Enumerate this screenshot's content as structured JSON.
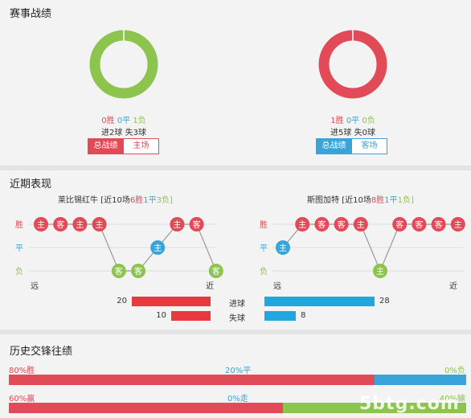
{
  "sections": {
    "record_title": "赛事战绩",
    "recent_title": "近期表现",
    "h2h_title": "历史交锋往绩"
  },
  "left_team": {
    "donut_win_fraction": 0,
    "donut_draw_fraction": 0,
    "donut_loss_fraction": 1,
    "wins": "0胜",
    "draws": "0平",
    "losses": "1负",
    "goals": "进2球",
    "conceded": "失3球",
    "tab_total": "总战绩",
    "tab_venue": "主场",
    "recent_team": "莱比锡红牛",
    "recent_prefix": "[近10场",
    "recent_wins": "6胜",
    "recent_draws": "1平",
    "recent_losses": "3负]",
    "results": [
      "W",
      "W",
      "W",
      "W",
      "L",
      "L",
      "D",
      "W",
      "W",
      "L"
    ],
    "venues": [
      "主",
      "客",
      "主",
      "主",
      "客",
      "客",
      "主",
      "主",
      "客",
      "客"
    ],
    "label_far": "远",
    "label_near": "近",
    "goals_for": 20,
    "goals_against": 10
  },
  "right_team": {
    "donut_win_fraction": 1,
    "donut_draw_fraction": 0,
    "donut_loss_fraction": 0,
    "wins": "1胜",
    "draws": "0平",
    "losses": "0负",
    "goals": "进5球",
    "conceded": "失0球",
    "tab_total": "总战绩",
    "tab_venue": "客场",
    "recent_team": "斯图加特",
    "recent_prefix": "[近10场",
    "recent_wins": "8胜",
    "recent_draws": "1平",
    "recent_losses": "1负]",
    "results": [
      "D",
      "W",
      "W",
      "W",
      "W",
      "L",
      "W",
      "W",
      "W",
      "W"
    ],
    "venues": [
      "主",
      "主",
      "客",
      "客",
      "主",
      "主",
      "客",
      "客",
      "客",
      "主"
    ],
    "label_far": "远",
    "label_near": "近",
    "goals_for": 28,
    "goals_against": 8
  },
  "axis_labels": {
    "win": "胜",
    "draw": "平",
    "loss": "负"
  },
  "center_labels": {
    "goals_for": "进球",
    "goals_against": "失球"
  },
  "h2h": {
    "row1": {
      "win_pct": 80,
      "draw_pct": 20,
      "loss_pct": 0,
      "win_label": "80%胜",
      "draw_label": "20%平",
      "loss_label": "0%负"
    },
    "row2": {
      "win_pct": 60,
      "draw_pct": 0,
      "loss_pct": 40,
      "win_label": "60%赢",
      "draw_label": "0%走",
      "loss_label": "40%输"
    }
  },
  "watermark": "5btg.com",
  "colors": {
    "win": "#e14a56",
    "draw": "#3aa4d8",
    "loss": "#8cc44d",
    "goals_for_bar": "#e8393f",
    "goals_against_bar": "#1fa8e0"
  }
}
